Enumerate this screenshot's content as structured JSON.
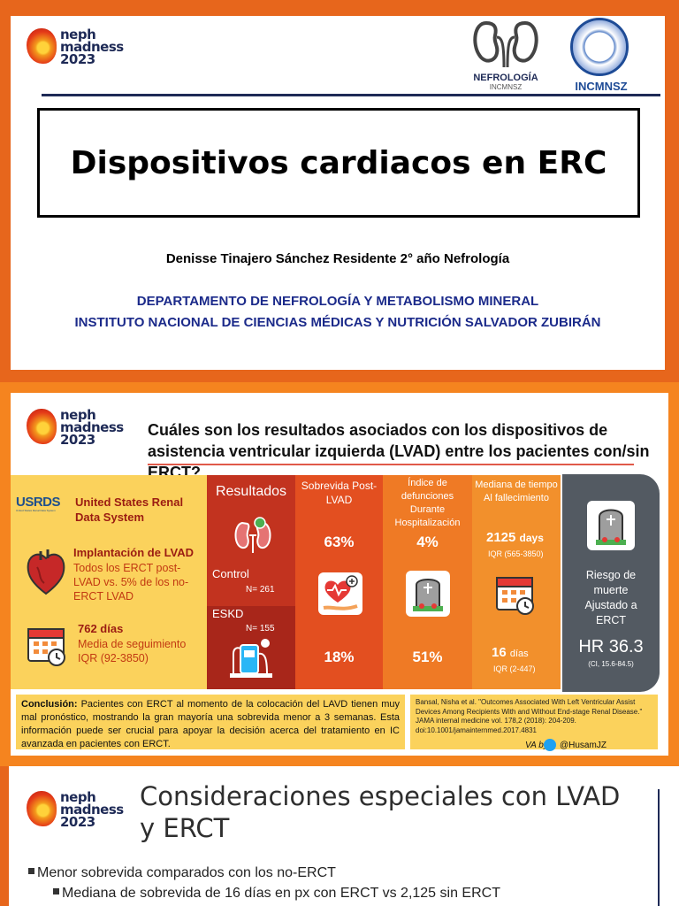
{
  "logo": {
    "line1": "neph",
    "line2": "madness",
    "line3": "2023"
  },
  "slide1": {
    "nefro_label": "NEFROLOGÍA",
    "nefro_sub": "INCMNSZ",
    "seal_label": "INCMNSZ",
    "title": "Dispositivos cardiacos en ERC",
    "author": "Denisse Tinajero Sánchez Residente 2° año Nefrología",
    "dept_line1": "DEPARTAMENTO DE NEFROLOGÍA Y METABOLISMO MINERAL",
    "dept_line2": "INSTITUTO NACIONAL DE CIENCIAS MÉDICAS Y NUTRICIÓN SALVADOR ZUBIRÁN"
  },
  "slide2": {
    "question": "Cuáles son los resultados asociados con los dispositivos de asistencia ventricular izquierda (LVAD) entre los pacientes con/sin ERCT?",
    "usrds": {
      "logo": "USRDS",
      "logo_sub": "United States Renal Data System",
      "name": "United States Renal Data System"
    },
    "lvad": {
      "title": "Implantación de LVAD",
      "desc": "Todos los ERCT post-LVAD vs. 5% de los no-ERCT LVAD"
    },
    "followup": {
      "title": "762 días",
      "desc": "Media de seguimiento IQR (92-3850)"
    },
    "results": {
      "header": "Resultados",
      "control_label": "Control",
      "control_n": "N= 261",
      "eskd_label": "ESKD",
      "eskd_n": "N= 155"
    },
    "survival": {
      "header": "Sobrevida Post-LVAD",
      "control": "63%",
      "eskd": "18%"
    },
    "deaths": {
      "header": "Índice de defunciones Durante Hospitalización",
      "control": "4%",
      "eskd": "51%"
    },
    "median": {
      "header": "Mediana de tiempo Al fallecimiento",
      "control": "2125",
      "control_unit": "days",
      "control_iqr": "IQR (565-3850)",
      "eskd": "16",
      "eskd_unit": "días",
      "eskd_iqr": "IQR (2-447)"
    },
    "risk": {
      "header": "Riesgo de muerte Ajustado a ERCT",
      "value": "HR 36.3",
      "ci": "(CI, 15.6-84.5)"
    },
    "conclusion_label": "Conclusión:",
    "conclusion": "Pacientes con ERCT al momento de la colocación del LAVD tienen muy mal pronóstico, mostrando la gran mayoría una sobrevida menor a 3 semanas. Esta información puede ser crucial para apoyar la decisión acerca del tratamiento en IC avanzada en pacientes con ERCT.",
    "reference": "Bansal, Nisha et al. \"Outcomes Associated With Left Ventricular Assist Devices Among Recipients With and Without End-stage Renal Disease.\" JAMA internal medicine vol. 178,2 (2018): 204-209. doi:10.1001/jamainternmed.2017.4831",
    "va_by": "VA by",
    "handle": "@HusamJZ"
  },
  "slide3": {
    "title": "Consideraciones especiales con LVAD y ERCT",
    "bullet1": "Menor sobrevida comparados con los no-ERCT",
    "bullet2": "Mediana de sobrevida de 16 días en px con ERCT vs 2,125 sin ERCT"
  },
  "colors": {
    "brand_orange": "#e7661c",
    "navy": "#1e2a56",
    "dept_blue": "#1b2a8a",
    "panel_yellow": "#fbd25c"
  },
  "icons": [
    "kidney-icon",
    "seal-icon",
    "heart-icon",
    "calendar-icon",
    "kidneys-icon",
    "lvad-device-icon",
    "heart-hand-icon",
    "tombstone-icon",
    "twitter-icon"
  ]
}
